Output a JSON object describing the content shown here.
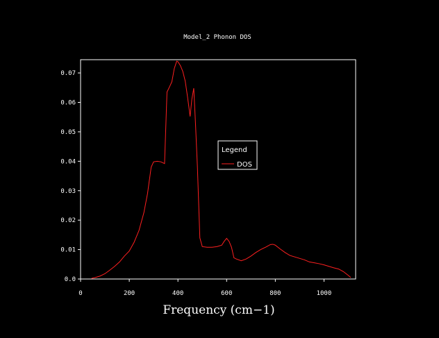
{
  "chart_data": {
    "type": "line",
    "title": "Model_2 Phonon DOS",
    "xlabel": "Frequency (cm−1)",
    "ylabel": "",
    "xlim": [
      0,
      1130
    ],
    "ylim": [
      0,
      0.0745
    ],
    "xticks": [
      0,
      200,
      400,
      600,
      800,
      1000
    ],
    "xtick_labels": [
      "0",
      "200",
      "400",
      "600",
      "800",
      "1000"
    ],
    "yticks": [
      0.0,
      0.01,
      0.02,
      0.03,
      0.04,
      0.05,
      0.06,
      0.07
    ],
    "ytick_labels": [
      "0.0",
      "0.01",
      "0.02",
      "0.03",
      "0.04",
      "0.05",
      "0.06",
      "0.07"
    ],
    "grid": false,
    "legend": {
      "title": "Legend",
      "placement": "center-right"
    },
    "colors": {
      "background": "#000000",
      "axes": "#ffffff",
      "series": "#ff2020"
    },
    "series": [
      {
        "name": "DOS",
        "x": [
          45,
          60,
          80,
          100,
          120,
          140,
          160,
          180,
          200,
          220,
          240,
          260,
          275,
          290,
          300,
          315,
          330,
          345,
          355,
          365,
          375,
          385,
          395,
          400,
          410,
          420,
          430,
          440,
          450,
          457,
          465,
          472,
          480,
          490,
          500,
          520,
          540,
          560,
          580,
          590,
          600,
          610,
          620,
          630,
          640,
          660,
          680,
          700,
          720,
          740,
          760,
          780,
          790,
          800,
          820,
          840,
          860,
          880,
          900,
          920,
          940,
          960,
          980,
          1000,
          1020,
          1040,
          1060,
          1080,
          1100,
          1110
        ],
        "y": [
          0.0002,
          0.0005,
          0.001,
          0.0018,
          0.003,
          0.0043,
          0.0058,
          0.0078,
          0.0095,
          0.0125,
          0.0165,
          0.0225,
          0.029,
          0.038,
          0.0398,
          0.04,
          0.0398,
          0.0392,
          0.0635,
          0.0652,
          0.067,
          0.0715,
          0.074,
          0.0738,
          0.0725,
          0.0705,
          0.0672,
          0.0615,
          0.0552,
          0.061,
          0.0648,
          0.053,
          0.038,
          0.014,
          0.011,
          0.0108,
          0.0108,
          0.011,
          0.0115,
          0.0128,
          0.0138,
          0.0128,
          0.0108,
          0.0072,
          0.0068,
          0.0062,
          0.0068,
          0.0078,
          0.009,
          0.01,
          0.0108,
          0.0117,
          0.0118,
          0.0115,
          0.0102,
          0.009,
          0.008,
          0.0075,
          0.007,
          0.0065,
          0.0058,
          0.0055,
          0.0052,
          0.0048,
          0.0043,
          0.0038,
          0.0034,
          0.0025,
          0.0012,
          0.0005
        ]
      }
    ]
  }
}
